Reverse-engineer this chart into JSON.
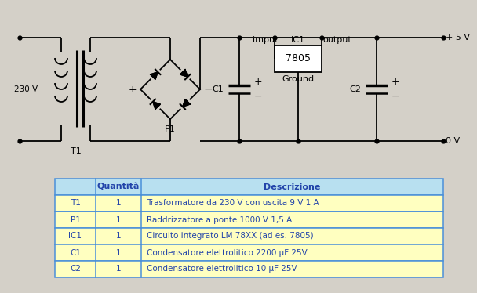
{
  "bg_color": "#d4d0c8",
  "table_header_bg": "#b8e0f0",
  "table_row_bg": "#ffffc0",
  "table_border": "#4a90d9",
  "text_blue": "#2244aa",
  "table_headers": [
    "",
    "Quantità",
    "Descrizione"
  ],
  "table_rows": [
    [
      "T1",
      "1",
      "Trasformatore da 230 V con uscita 9 V 1 A"
    ],
    [
      "P1",
      "1",
      "Raddrizzatore a ponte 1000 V 1,5 A"
    ],
    [
      "IC1",
      "1",
      "Circuito integrato LM 78XX (ad es. 7805)"
    ],
    [
      "C1",
      "1",
      "Condensatore elettrolitico 2200 μF 25V"
    ],
    [
      "C2",
      "1",
      "Condensatore elettrolitico 10 μF 25V"
    ]
  ],
  "label_230V": "230 V",
  "label_T1": "T1",
  "label_P1": "P1",
  "label_IC1": "IC1",
  "label_7805": "7805",
  "label_imput": "imput",
  "label_output": "output",
  "label_ground": "Ground",
  "label_C1": "C1",
  "label_C2": "C2",
  "label_plus5V": "+ 5 V",
  "label_0V": "0 V"
}
